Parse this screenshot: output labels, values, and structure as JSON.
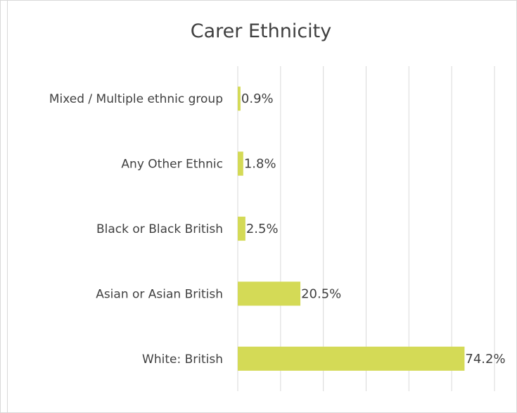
{
  "chart_data": {
    "type": "bar",
    "orientation": "horizontal",
    "title": "Carer Ethnicity",
    "categories": [
      "Mixed / Multiple ethnic group",
      "Any Other Ethnic",
      "Black or Black British",
      "Asian or Asian British",
      "White: British"
    ],
    "values": [
      0.9,
      1.8,
      2.5,
      20.5,
      74.2
    ],
    "data_labels": [
      "0.9%",
      "1.8%",
      "2.5%",
      "20.5%",
      "74.2%"
    ],
    "xlim": [
      0,
      84
    ],
    "grid": true,
    "legend": "none",
    "bar_color": "#d4da56"
  }
}
